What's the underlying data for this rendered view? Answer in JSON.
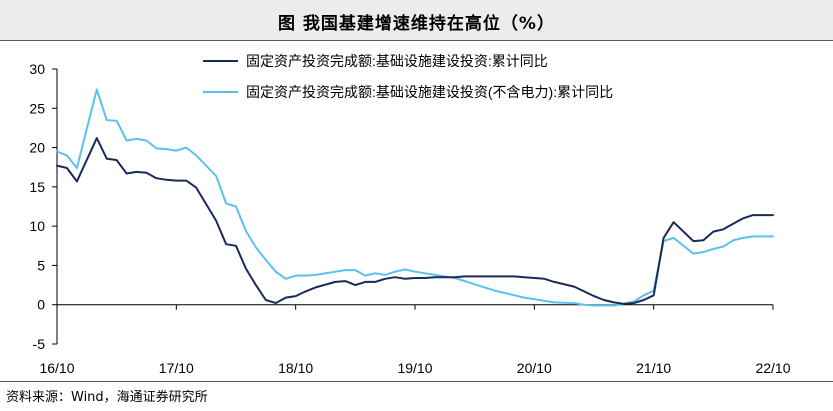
{
  "header": {
    "title": "图  我国基建增速维持在高位（%）"
  },
  "footer": {
    "source": "资料来源：Wind，海通证券研究所"
  },
  "chart_data": {
    "type": "line",
    "title": "图  我国基建增速维持在高位（%）",
    "xlabel": "",
    "ylabel": "",
    "ylim": [
      -5,
      30
    ],
    "yticks": [
      "-5",
      "0",
      "5",
      "10",
      "15",
      "20",
      "25",
      "30"
    ],
    "xlim": [
      "16/10",
      "22/10"
    ],
    "xticks": [
      "16/10",
      "17/10",
      "18/10",
      "19/10",
      "20/10",
      "21/10",
      "22/10"
    ],
    "grid": false,
    "legend": "top-right",
    "colors": {
      "series1": "#1b2a5c",
      "series2": "#5bc1ea"
    },
    "x": [
      "16/10",
      "16/11",
      "16/12",
      "17/02",
      "17/03",
      "17/04",
      "17/05",
      "17/06",
      "17/07",
      "17/08",
      "17/09",
      "17/10",
      "17/11",
      "17/12",
      "18/02",
      "18/03",
      "18/04",
      "18/05",
      "18/06",
      "18/07",
      "18/08",
      "18/09",
      "18/10",
      "18/11",
      "18/12",
      "19/02",
      "19/03",
      "19/04",
      "19/05",
      "19/06",
      "19/07",
      "19/08",
      "19/09",
      "19/10",
      "19/11",
      "19/12",
      "20/02",
      "20/03",
      "20/04",
      "20/05",
      "20/06",
      "20/07",
      "20/08",
      "20/09",
      "20/10",
      "20/11",
      "20/12",
      "21/02",
      "21/03",
      "21/04",
      "21/05",
      "21/06",
      "21/07",
      "21/08",
      "21/09",
      "21/10",
      "21/11",
      "21/12",
      "22/02",
      "22/03",
      "22/04",
      "22/05",
      "22/06",
      "22/07",
      "22/08",
      "22/09",
      "22/10"
    ],
    "series": [
      {
        "name": "固定资产投资完成额:基础设施建设投资:累计同比",
        "values": [
          17.7,
          17.4,
          15.7,
          21.2,
          18.6,
          18.4,
          16.7,
          16.9,
          16.8,
          16.1,
          15.9,
          15.8,
          15.8,
          14.9,
          10.7,
          7.7,
          7.5,
          4.6,
          2.5,
          0.6,
          0.2,
          0.9,
          1.1,
          1.7,
          2.2,
          2.9,
          3.0,
          2.5,
          2.9,
          2.9,
          3.3,
          3.5,
          3.3,
          3.4,
          3.4,
          3.5,
          3.5,
          3.6,
          3.6,
          3.6,
          3.6,
          3.6,
          3.6,
          3.5,
          3.4,
          3.3,
          2.9,
          2.3,
          1.7,
          1.1,
          0.6,
          0.3,
          0.1,
          0.2,
          0.6,
          1.2,
          8.5,
          10.5,
          8.1,
          8.2,
          9.3,
          9.6,
          10.3,
          11.0,
          11.4,
          11.4,
          11.4
        ]
      },
      {
        "name": "固定资产投资完成额:基础设施建设投资(不含电力):累计同比",
        "values": [
          19.5,
          19.0,
          17.4,
          27.4,
          23.5,
          23.4,
          20.9,
          21.1,
          20.9,
          19.9,
          19.8,
          19.6,
          20.0,
          19.0,
          16.4,
          12.9,
          12.5,
          9.4,
          7.3,
          5.7,
          4.2,
          3.3,
          3.7,
          3.7,
          3.8,
          4.2,
          4.4,
          4.4,
          3.7,
          4.0,
          3.8,
          4.2,
          4.5,
          4.2,
          4.0,
          3.8,
          3.4,
          3.0,
          2.6,
          2.2,
          1.8,
          1.5,
          1.2,
          0.9,
          0.7,
          0.5,
          0.3,
          0.2,
          0.0,
          -0.1,
          -0.1,
          -0.1,
          0.1,
          0.4,
          1.2,
          1.8,
          8.1,
          8.5,
          6.5,
          6.7,
          7.1,
          7.4,
          8.2,
          8.5,
          8.7,
          8.7,
          8.7
        ]
      }
    ]
  }
}
